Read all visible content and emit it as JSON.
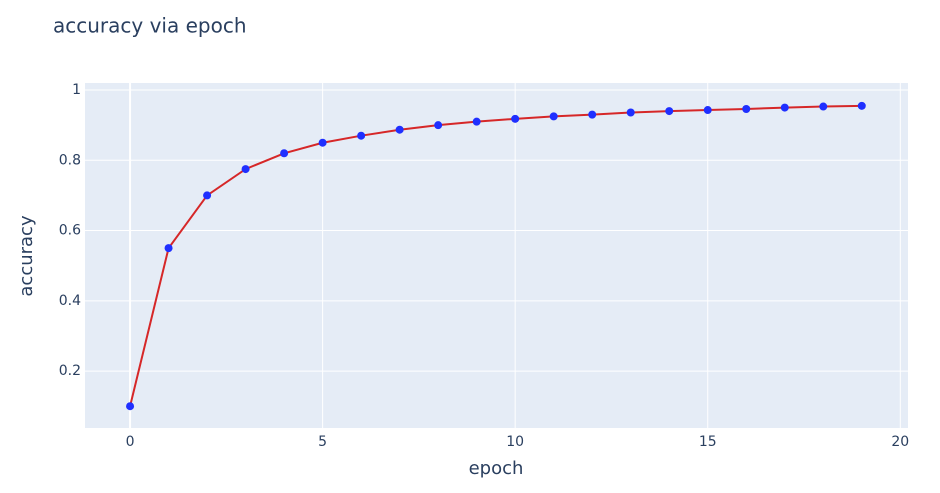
{
  "chart_data": {
    "type": "line",
    "title": "accuracy via epoch",
    "x_label": "epoch",
    "y_label": "accuracy",
    "x": [
      0,
      1,
      2,
      3,
      4,
      5,
      6,
      7,
      8,
      9,
      10,
      11,
      12,
      13,
      14,
      15,
      16,
      17,
      18,
      19
    ],
    "series": [
      {
        "name": "accuracy",
        "line_color": "#d62728",
        "color": "#1f2fff",
        "values": [
          0.1,
          0.55,
          0.7,
          0.775,
          0.82,
          0.85,
          0.87,
          0.887,
          0.9,
          0.91,
          0.918,
          0.925,
          0.93,
          0.936,
          0.94,
          0.943,
          0.946,
          0.95,
          0.953,
          0.955
        ]
      }
    ],
    "xlim": [
      -1.17,
      20.2
    ],
    "xticks": [
      0,
      5,
      10,
      15,
      20
    ],
    "ylim": [
      0.038,
      1.02
    ],
    "yticks": [
      0.2,
      0.4,
      0.6,
      0.8,
      1
    ],
    "grid": true
  }
}
